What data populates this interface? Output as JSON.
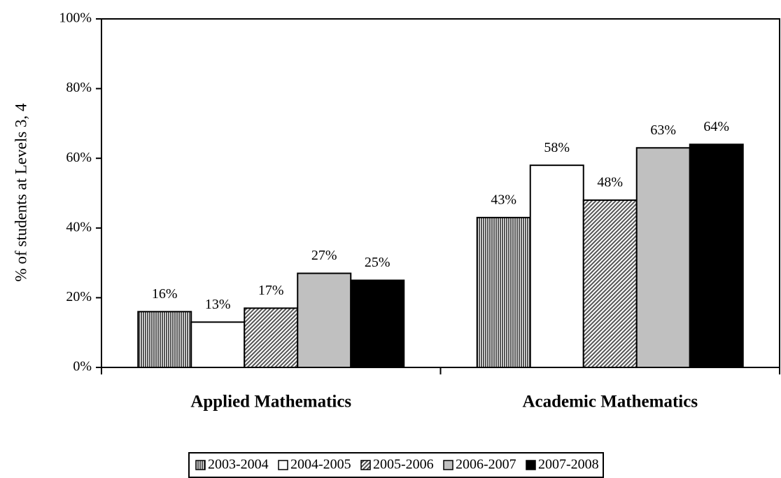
{
  "chart_data": {
    "type": "bar",
    "y_label": "% of students at Levels 3, 4",
    "categories": [
      "Applied Mathematics",
      "Academic Mathematics"
    ],
    "series": [
      {
        "name": "2003-2004",
        "color": "#555555",
        "pattern": "vertical",
        "values": [
          16,
          43
        ],
        "value_labels": [
          "16%",
          "43%"
        ]
      },
      {
        "name": "2004-2005",
        "color": "#ffffff",
        "pattern": "none",
        "values": [
          13,
          58
        ],
        "value_labels": [
          "13%",
          "58%"
        ]
      },
      {
        "name": "2005-2006",
        "color": "#555555",
        "pattern": "diagonal",
        "values": [
          17,
          48
        ],
        "value_labels": [
          "17%",
          "48%"
        ]
      },
      {
        "name": "2006-2007",
        "color": "#c0c0c0",
        "pattern": "none",
        "values": [
          27,
          63
        ],
        "value_labels": [
          "27%",
          "63%"
        ]
      },
      {
        "name": "2007-2008",
        "color": "#000000",
        "pattern": "none",
        "values": [
          25,
          64
        ],
        "value_labels": [
          "25%",
          "64%"
        ]
      }
    ],
    "ylim": [
      0,
      100
    ],
    "yticks": [
      {
        "value": 0,
        "label": "0%"
      },
      {
        "value": 20,
        "label": "20%"
      },
      {
        "value": 40,
        "label": "40%"
      },
      {
        "value": 60,
        "label": "60%"
      },
      {
        "value": 80,
        "label": "80%"
      },
      {
        "value": 100,
        "label": "100%"
      }
    ],
    "grid": false,
    "legend": "bottom"
  }
}
